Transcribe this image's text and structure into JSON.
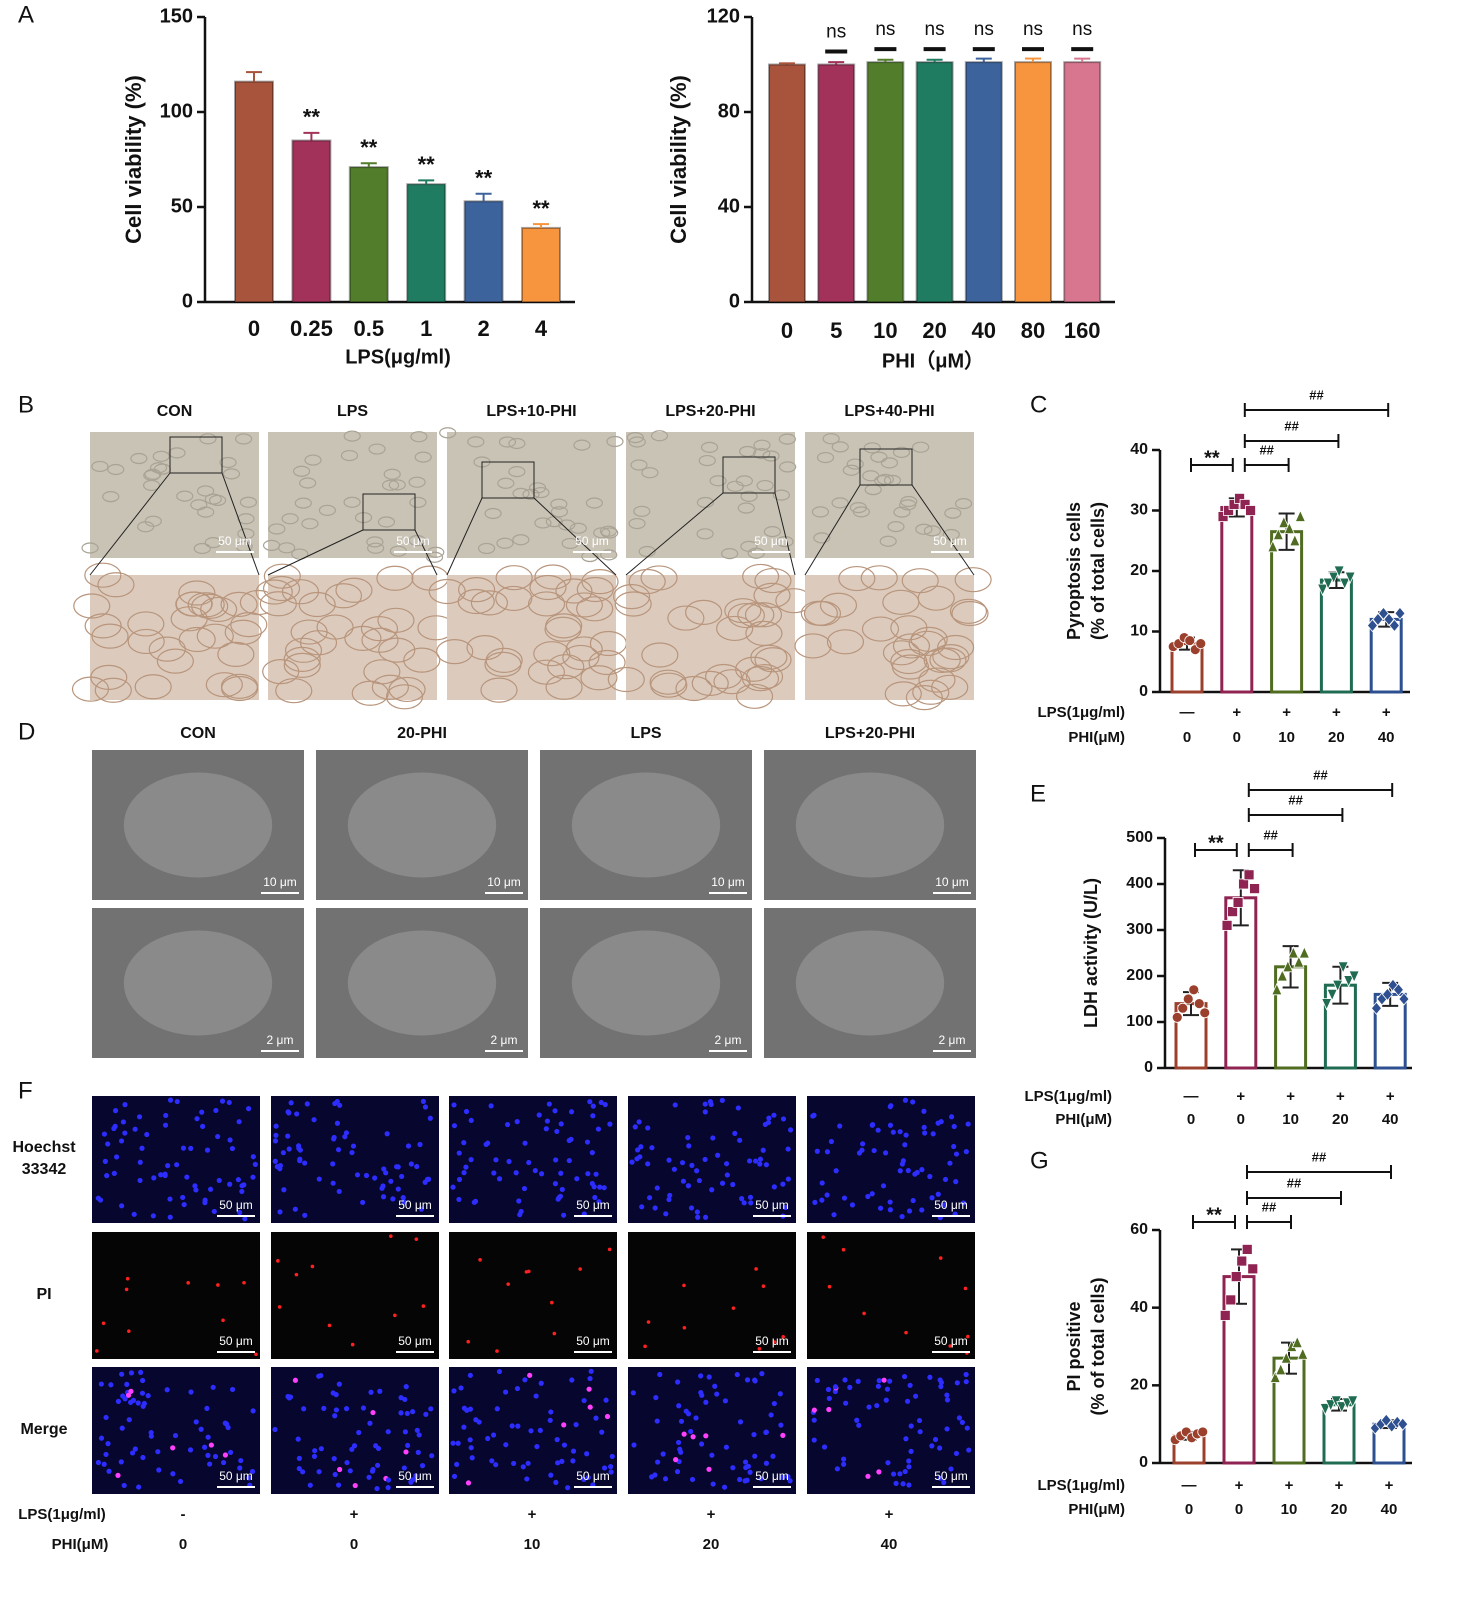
{
  "panel_letters": [
    "A",
    "B",
    "C",
    "D",
    "E",
    "F",
    "G"
  ],
  "chart_data": [
    {
      "type": "bar",
      "categories": [
        "0",
        "0.25",
        "0.5",
        "1",
        "2",
        "4"
      ],
      "values": [
        116,
        85,
        71,
        62,
        53,
        39
      ],
      "errors": [
        5,
        4,
        2,
        2,
        4,
        2
      ],
      "value_annotations": [
        null,
        "**",
        "**",
        "**",
        "**",
        "**"
      ],
      "colors": [
        "#a8533c",
        "#a3325a",
        "#527d2b",
        "#1f7c61",
        "#3c639c",
        "#f7953f"
      ],
      "ylim": [
        0,
        150
      ],
      "yticks": [
        0,
        50,
        100,
        150
      ],
      "ylabel": "Cell viability (%)",
      "xlabel": "LPS(μg/ml)"
    },
    {
      "type": "bar",
      "categories": [
        "0",
        "5",
        "10",
        "20",
        "40",
        "80",
        "160"
      ],
      "values": [
        100,
        100,
        101,
        101,
        101,
        101,
        101
      ],
      "errors": [
        0.5,
        1,
        1,
        1,
        1.5,
        1.5,
        1.5
      ],
      "value_annotations": [
        null,
        "ns",
        "ns",
        "ns",
        "ns",
        "ns",
        "ns"
      ],
      "colors": [
        "#a8533c",
        "#a3325a",
        "#527d2b",
        "#1f7c61",
        "#3c639c",
        "#f7953f",
        "#d8768f"
      ],
      "ylim": [
        0,
        120
      ],
      "yticks": [
        0,
        40,
        80,
        120
      ],
      "ylabel": "Cell viability (%)",
      "xlabel": "PHI（μM）"
    },
    {
      "type": "dot-bar",
      "bar_fill": "hollow",
      "values": [
        8,
        30.5,
        26.5,
        18.5,
        12
      ],
      "errors": [
        1,
        1.5,
        3,
        1.3,
        1.2
      ],
      "points": [
        [
          7.5,
          8,
          9,
          8.5,
          7,
          8
        ],
        [
          29,
          30,
          31,
          32,
          31,
          30
        ],
        [
          24,
          26,
          28,
          27,
          25,
          29
        ],
        [
          17,
          18,
          19,
          20,
          18,
          19
        ],
        [
          11,
          12,
          13,
          12,
          11,
          13
        ]
      ],
      "colors": [
        "#9c402e",
        "#8f2452",
        "#4f6c20",
        "#1f6c53",
        "#2e5090"
      ],
      "category_rows": [
        {
          "label": "LPS(1μg/ml)",
          "values": [
            "—",
            "+",
            "+",
            "+",
            "+"
          ]
        },
        {
          "label": "PHI(μM)",
          "values": [
            "0",
            "0",
            "10",
            "20",
            "40"
          ]
        }
      ],
      "annotations": [
        "**",
        "##",
        "##",
        "##"
      ],
      "ylim": [
        0,
        40
      ],
      "yticks": [
        0,
        10,
        20,
        30,
        40
      ],
      "ylabel": [
        "Pyroptosis cells",
        "(% of total cells)"
      ]
    },
    {
      "type": "dot-bar",
      "bar_fill": "hollow",
      "values": [
        140,
        370,
        220,
        180,
        160
      ],
      "errors": [
        25,
        60,
        45,
        40,
        25
      ],
      "points": [
        [
          110,
          130,
          150,
          170,
          140,
          120
        ],
        [
          310,
          340,
          360,
          400,
          420,
          390
        ],
        [
          170,
          200,
          220,
          250,
          230,
          250
        ],
        [
          140,
          160,
          180,
          220,
          190,
          200
        ],
        [
          130,
          150,
          160,
          180,
          170,
          150
        ]
      ],
      "colors": [
        "#9c402e",
        "#8f2452",
        "#4f6c20",
        "#1f6c53",
        "#2e5090"
      ],
      "category_rows": [
        {
          "label": "LPS(1μg/ml)",
          "values": [
            "—",
            "+",
            "+",
            "+",
            "+"
          ]
        },
        {
          "label": "PHI(μM)",
          "values": [
            "0",
            "0",
            "10",
            "20",
            "40"
          ]
        }
      ],
      "annotations": [
        "**",
        "##",
        "##",
        "##"
      ],
      "ylim": [
        0,
        500
      ],
      "yticks": [
        0,
        100,
        200,
        300,
        400,
        500
      ],
      "ylabel": [
        "LDH activity (U/L)"
      ]
    },
    {
      "type": "dot-bar",
      "bar_fill": "hollow",
      "values": [
        7,
        48,
        27,
        15,
        10
      ],
      "errors": [
        1,
        7,
        4,
        1.5,
        1
      ],
      "points": [
        [
          6,
          7,
          8,
          6.5,
          7.5,
          8
        ],
        [
          38,
          42,
          48,
          52,
          55,
          50
        ],
        [
          22,
          24,
          27,
          30,
          31,
          28
        ],
        [
          14,
          15,
          16,
          14.5,
          15.5,
          16
        ],
        [
          9,
          10,
          11,
          9.5,
          10.5,
          10
        ]
      ],
      "colors": [
        "#9c402e",
        "#8f2452",
        "#4f6c20",
        "#1f6c53",
        "#2e5090"
      ],
      "category_rows": [
        {
          "label": "LPS(1μg/ml)",
          "values": [
            "—",
            "+",
            "+",
            "+",
            "+"
          ]
        },
        {
          "label": "PHI(μM)",
          "values": [
            "0",
            "0",
            "10",
            "20",
            "40"
          ]
        }
      ],
      "annotations": [
        "**",
        "##",
        "##",
        "##"
      ],
      "ylim": [
        0,
        60
      ],
      "yticks": [
        0,
        20,
        40,
        60
      ],
      "ylabel": [
        "PI positive",
        "(% of total cells)"
      ]
    }
  ],
  "panel_b": {
    "columns": [
      "CON",
      "LPS",
      "LPS+10-PHI",
      "LPS+20-PHI",
      "LPS+40-PHI"
    ],
    "scale_bar": "50 μm"
  },
  "panel_d": {
    "columns": [
      "CON",
      "20-PHI",
      "LPS",
      "LPS+20-PHI"
    ],
    "scale_bars": [
      "10 μm",
      "2 μm"
    ]
  },
  "panel_f": {
    "rows": [
      [
        "Hoechst",
        "33342"
      ],
      [
        "PI"
      ],
      [
        "Merge"
      ]
    ],
    "scale_bar": "50 μm",
    "category_rows": [
      {
        "label": "LPS(1μg/ml)",
        "values": [
          "-",
          "+",
          "+",
          "+",
          "+"
        ]
      },
      {
        "label": "PHI(μM)",
        "values": [
          "0",
          "0",
          "10",
          "20",
          "40"
        ]
      }
    ]
  }
}
